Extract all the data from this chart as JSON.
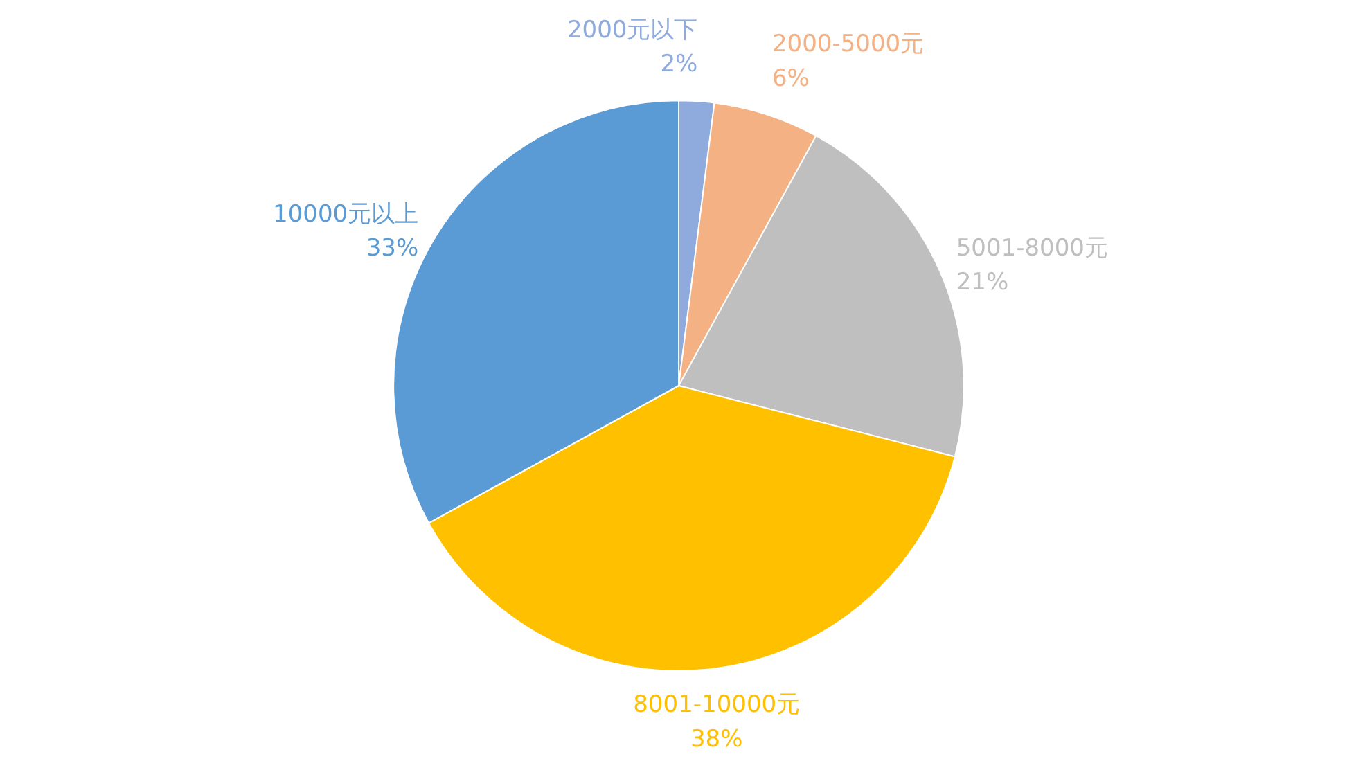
{
  "chart_data": {
    "type": "pie",
    "categories": [
      "2000元以下",
      "2000-5000元",
      "5001-8000元",
      "8001-10000元",
      "10000元以上"
    ],
    "values": [
      2,
      6,
      21,
      38,
      33
    ],
    "value_labels": [
      "2%",
      "6%",
      "21%",
      "38%",
      "33%"
    ],
    "colors": [
      "#8faadc",
      "#f4b183",
      "#bfbfbf",
      "#ffc000",
      "#5b9bd5"
    ]
  }
}
